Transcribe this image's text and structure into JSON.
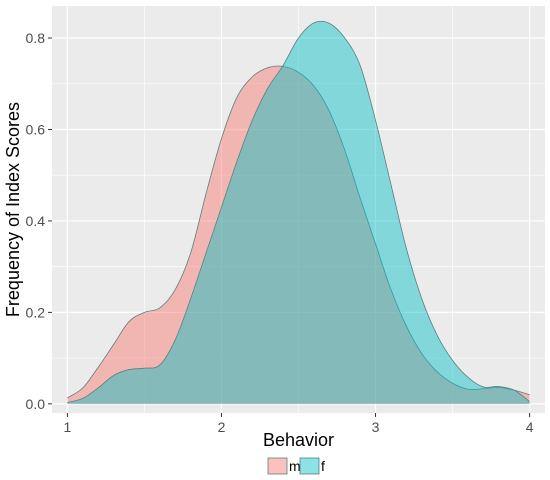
{
  "chart_data": {
    "type": "area",
    "title": "",
    "xlabel": "Behavior",
    "ylabel": "Frequency of Index Scores",
    "xlim": [
      0.9,
      4.1
    ],
    "ylim": [
      -0.02,
      0.87
    ],
    "x_ticks": [
      1,
      2,
      3,
      4
    ],
    "x_tick_labels": [
      "1",
      "2",
      "3",
      "4"
    ],
    "y_ticks": [
      0,
      0.2,
      0.4,
      0.6,
      0.8
    ],
    "y_tick_labels": [
      "0.0",
      "0.2",
      "0.4",
      "0.6",
      "0.8"
    ],
    "grid": true,
    "legend_position": "bottom",
    "series": [
      {
        "name": "m",
        "color": "#F8766D",
        "points": [
          [
            1.0,
            0.013
          ],
          [
            1.1,
            0.035
          ],
          [
            1.2,
            0.08
          ],
          [
            1.3,
            0.13
          ],
          [
            1.4,
            0.18
          ],
          [
            1.5,
            0.2
          ],
          [
            1.6,
            0.21
          ],
          [
            1.7,
            0.25
          ],
          [
            1.8,
            0.33
          ],
          [
            1.9,
            0.46
          ],
          [
            2.0,
            0.58
          ],
          [
            2.1,
            0.67
          ],
          [
            2.2,
            0.715
          ],
          [
            2.3,
            0.735
          ],
          [
            2.4,
            0.738
          ],
          [
            2.5,
            0.725
          ],
          [
            2.6,
            0.695
          ],
          [
            2.7,
            0.64
          ],
          [
            2.8,
            0.555
          ],
          [
            2.9,
            0.45
          ],
          [
            3.0,
            0.35
          ],
          [
            3.1,
            0.25
          ],
          [
            3.2,
            0.17
          ],
          [
            3.3,
            0.11
          ],
          [
            3.4,
            0.07
          ],
          [
            3.5,
            0.045
          ],
          [
            3.6,
            0.032
          ],
          [
            3.7,
            0.033
          ],
          [
            3.8,
            0.036
          ],
          [
            3.9,
            0.03
          ],
          [
            4.0,
            0.02
          ]
        ]
      },
      {
        "name": "f",
        "color": "#00BFC4",
        "points": [
          [
            1.0,
            0.003
          ],
          [
            1.1,
            0.012
          ],
          [
            1.2,
            0.035
          ],
          [
            1.3,
            0.062
          ],
          [
            1.4,
            0.075
          ],
          [
            1.5,
            0.078
          ],
          [
            1.6,
            0.085
          ],
          [
            1.7,
            0.14
          ],
          [
            1.8,
            0.23
          ],
          [
            1.9,
            0.33
          ],
          [
            2.0,
            0.43
          ],
          [
            2.1,
            0.53
          ],
          [
            2.2,
            0.62
          ],
          [
            2.3,
            0.69
          ],
          [
            2.4,
            0.74
          ],
          [
            2.5,
            0.8
          ],
          [
            2.6,
            0.833
          ],
          [
            2.7,
            0.832
          ],
          [
            2.8,
            0.8
          ],
          [
            2.9,
            0.74
          ],
          [
            3.0,
            0.62
          ],
          [
            3.1,
            0.48
          ],
          [
            3.2,
            0.34
          ],
          [
            3.3,
            0.23
          ],
          [
            3.4,
            0.15
          ],
          [
            3.5,
            0.095
          ],
          [
            3.6,
            0.058
          ],
          [
            3.7,
            0.037
          ],
          [
            3.8,
            0.038
          ],
          [
            3.9,
            0.03
          ],
          [
            4.0,
            0.005
          ]
        ]
      }
    ]
  },
  "legend": {
    "items": [
      {
        "label": "m",
        "color": "#F8766D"
      },
      {
        "label": "f",
        "color": "#00BFC4"
      }
    ]
  }
}
